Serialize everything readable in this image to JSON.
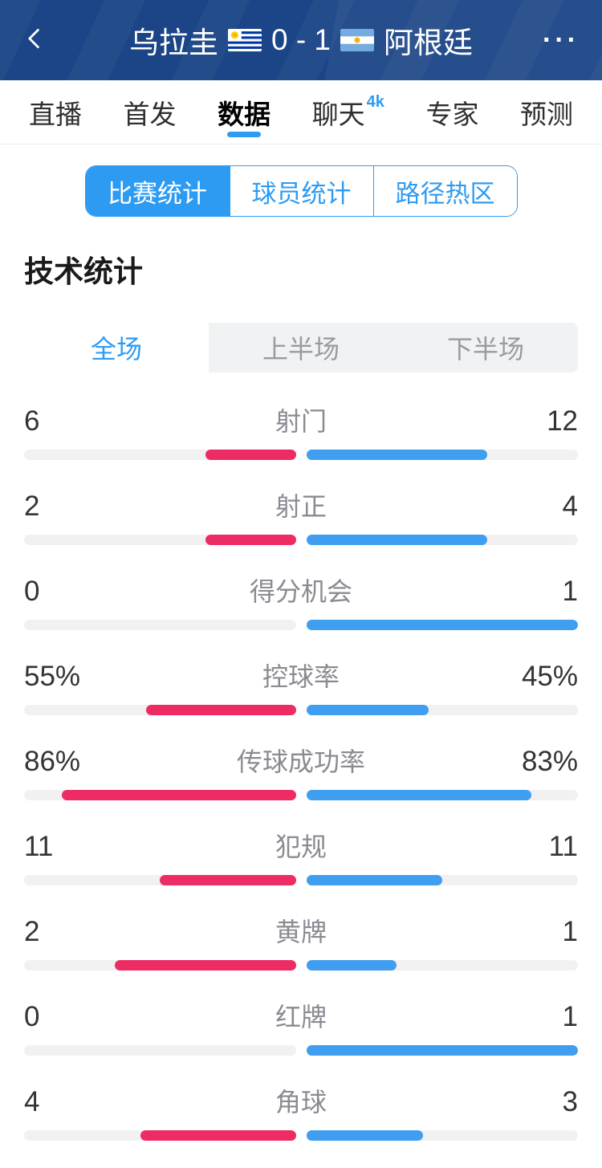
{
  "header": {
    "home_team": "乌拉圭",
    "score": "0 - 1",
    "away_team": "阿根廷",
    "back_icon": "chevron-left-icon",
    "more_icon": "···",
    "home_flag": "uruguay-flag",
    "away_flag": "argentina-flag"
  },
  "tabs": [
    {
      "name": "tab-live",
      "label": "直播"
    },
    {
      "name": "tab-lineup",
      "label": "首发"
    },
    {
      "name": "tab-data",
      "label": "数据",
      "active": true
    },
    {
      "name": "tab-chat",
      "label": "聊天",
      "badge": "4k"
    },
    {
      "name": "tab-expert",
      "label": "专家"
    },
    {
      "name": "tab-predict",
      "label": "预测"
    }
  ],
  "stat_tabs": [
    {
      "name": "subtab-match-stats",
      "label": "比赛统计",
      "active": true
    },
    {
      "name": "subtab-player-stats",
      "label": "球员统计"
    },
    {
      "name": "subtab-heat-zone",
      "label": "路径热区"
    }
  ],
  "section_title": "技术统计",
  "period_tabs": [
    {
      "name": "period-full",
      "label": "全场",
      "active": true
    },
    {
      "name": "period-first-half",
      "label": "上半场"
    },
    {
      "name": "period-second-half",
      "label": "下半场"
    }
  ],
  "chart_data": {
    "type": "bar",
    "title": "技术统计",
    "teams": [
      "乌拉圭",
      "阿根廷"
    ],
    "score": "0 - 1",
    "legend_note": "left pink = 乌拉圭, right blue = 阿根廷; bar length = share of half track",
    "rows": [
      {
        "name": "stat-row-shots",
        "label": "射门",
        "home": "6",
        "away": "12",
        "home_pct": 33.3,
        "away_pct": 66.7
      },
      {
        "name": "stat-row-shots-on-target",
        "label": "射正",
        "home": "2",
        "away": "4",
        "home_pct": 33.3,
        "away_pct": 66.7
      },
      {
        "name": "stat-row-big-chances",
        "label": "得分机会",
        "home": "0",
        "away": "1",
        "home_pct": 0,
        "away_pct": 100
      },
      {
        "name": "stat-row-possession",
        "label": "控球率",
        "home": "55%",
        "away": "45%",
        "home_pct": 55,
        "away_pct": 45
      },
      {
        "name": "stat-row-pass-accuracy",
        "label": "传球成功率",
        "home": "86%",
        "away": "83%",
        "home_pct": 86,
        "away_pct": 83
      },
      {
        "name": "stat-row-fouls",
        "label": "犯规",
        "home": "11",
        "away": "11",
        "home_pct": 50,
        "away_pct": 50
      },
      {
        "name": "stat-row-yellow-cards",
        "label": "黄牌",
        "home": "2",
        "away": "1",
        "home_pct": 66.7,
        "away_pct": 33.3
      },
      {
        "name": "stat-row-red-cards",
        "label": "红牌",
        "home": "0",
        "away": "1",
        "home_pct": 0,
        "away_pct": 100
      },
      {
        "name": "stat-row-corners",
        "label": "角球",
        "home": "4",
        "away": "3",
        "home_pct": 57.1,
        "away_pct": 42.9
      }
    ]
  },
  "colors": {
    "header_bg": "#1b4586",
    "accent_blue": "#2e9bf2",
    "bar_home_pink": "#ed2c63",
    "bar_away_blue": "#3f9ef0",
    "bar_track": "#f1f1f2",
    "inactive_gray": "#9a9aa2"
  }
}
